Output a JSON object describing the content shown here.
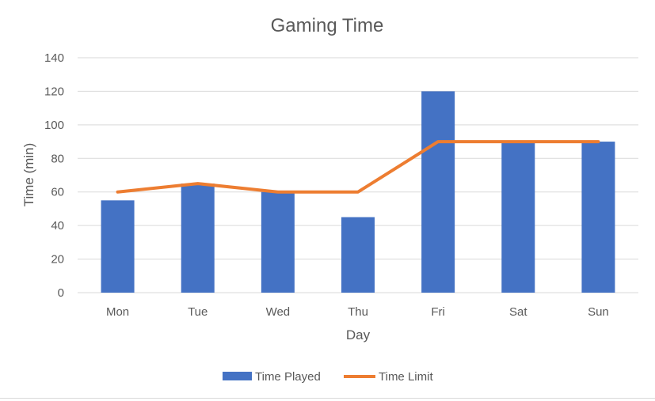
{
  "chart_data": {
    "type": "bar",
    "title": "Gaming Time",
    "xlabel": "Day",
    "ylabel": "Time (min)",
    "categories": [
      "Mon",
      "Tue",
      "Wed",
      "Thu",
      "Fri",
      "Sat",
      "Sun"
    ],
    "series": [
      {
        "name": "Time Played",
        "type": "bar",
        "color": "#4472C4",
        "values": [
          55,
          65,
          60,
          45,
          120,
          90,
          90
        ]
      },
      {
        "name": "Time Limit",
        "type": "line",
        "color": "#ED7D31",
        "values": [
          60,
          65,
          60,
          60,
          90,
          90,
          90
        ]
      }
    ],
    "ylim": [
      0,
      140
    ],
    "yticks": [
      0,
      20,
      40,
      60,
      80,
      100,
      120,
      140
    ],
    "grid": true,
    "legend_position": "bottom"
  }
}
